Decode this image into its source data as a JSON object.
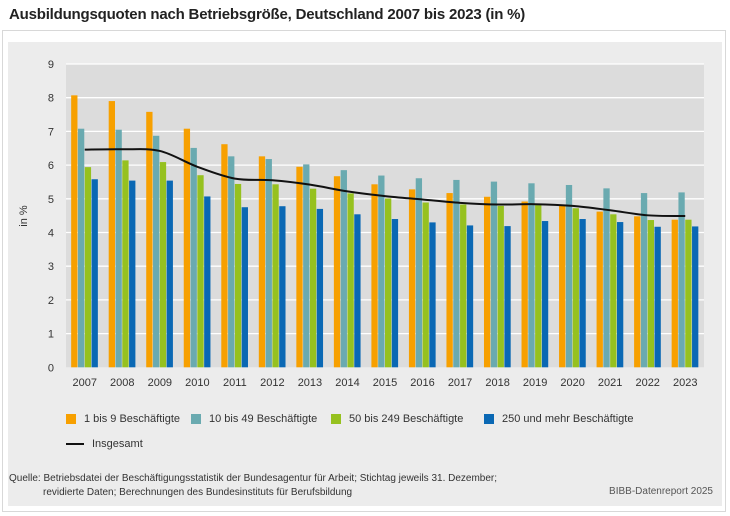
{
  "title": "Ausbildungsquoten nach Betriebsgröße, Deutschland 2007 bis 2023 (in %)",
  "chart_data": {
    "type": "bar",
    "title": "Ausbildungsquoten nach Betriebsgröße, Deutschland 2007 bis 2023 (in %)",
    "xlabel": "",
    "ylabel": "in %",
    "ylim": [
      0,
      9
    ],
    "yticks": [
      "0",
      "1",
      "2",
      "3",
      "4",
      "5",
      "6",
      "7",
      "8",
      "9"
    ],
    "grid": true,
    "legend_position": "bottom",
    "categories": [
      "2007",
      "2008",
      "2009",
      "2010",
      "2011",
      "2012",
      "2013",
      "2014",
      "2015",
      "2016",
      "2017",
      "2018",
      "2019",
      "2020",
      "2021",
      "2022",
      "2023"
    ],
    "series": [
      {
        "name": "1 bis 9 Beschäftigte",
        "color": "#f7a000",
        "values": [
          8.07,
          7.9,
          7.58,
          7.08,
          6.62,
          6.26,
          5.95,
          5.67,
          5.43,
          5.28,
          5.17,
          5.06,
          4.92,
          4.79,
          4.62,
          4.48,
          4.38
        ]
      },
      {
        "name": "10 bis 49 Beschäftigte",
        "color": "#6aaab0",
        "values": [
          7.08,
          7.05,
          6.87,
          6.51,
          6.26,
          6.18,
          6.02,
          5.85,
          5.69,
          5.61,
          5.56,
          5.51,
          5.46,
          5.41,
          5.31,
          5.17,
          5.19
        ]
      },
      {
        "name": "50 bis 249 Beschäftigte",
        "color": "#96c11f",
        "values": [
          5.94,
          6.14,
          6.09,
          5.7,
          5.44,
          5.43,
          5.3,
          5.16,
          5.01,
          4.89,
          4.83,
          4.79,
          4.81,
          4.72,
          4.54,
          4.37,
          4.38
        ]
      },
      {
        "name": "250 und mehr Beschäftigte",
        "color": "#0a68b4",
        "values": [
          5.58,
          5.54,
          5.54,
          5.07,
          4.75,
          4.78,
          4.7,
          4.54,
          4.4,
          4.3,
          4.21,
          4.19,
          4.34,
          4.4,
          4.31,
          4.17,
          4.18
        ]
      }
    ],
    "line": {
      "name": "Insgesamt",
      "color": "#111111",
      "values": [
        6.46,
        6.47,
        6.42,
        5.95,
        5.6,
        5.55,
        5.42,
        5.22,
        5.08,
        4.98,
        4.88,
        4.83,
        4.84,
        4.79,
        4.66,
        4.51,
        4.49
      ]
    }
  },
  "source_line1": "Quelle: Betriebsdatei der Beschäftigungsstatistik der Bundesagentur für Arbeit; Stichtag jeweils 31. Dezember;",
  "source_line2": "revidierte Daten; Berechnungen des Bundesinstituts für Berufsbildung",
  "credit": "BIBB-Datenreport 2025"
}
